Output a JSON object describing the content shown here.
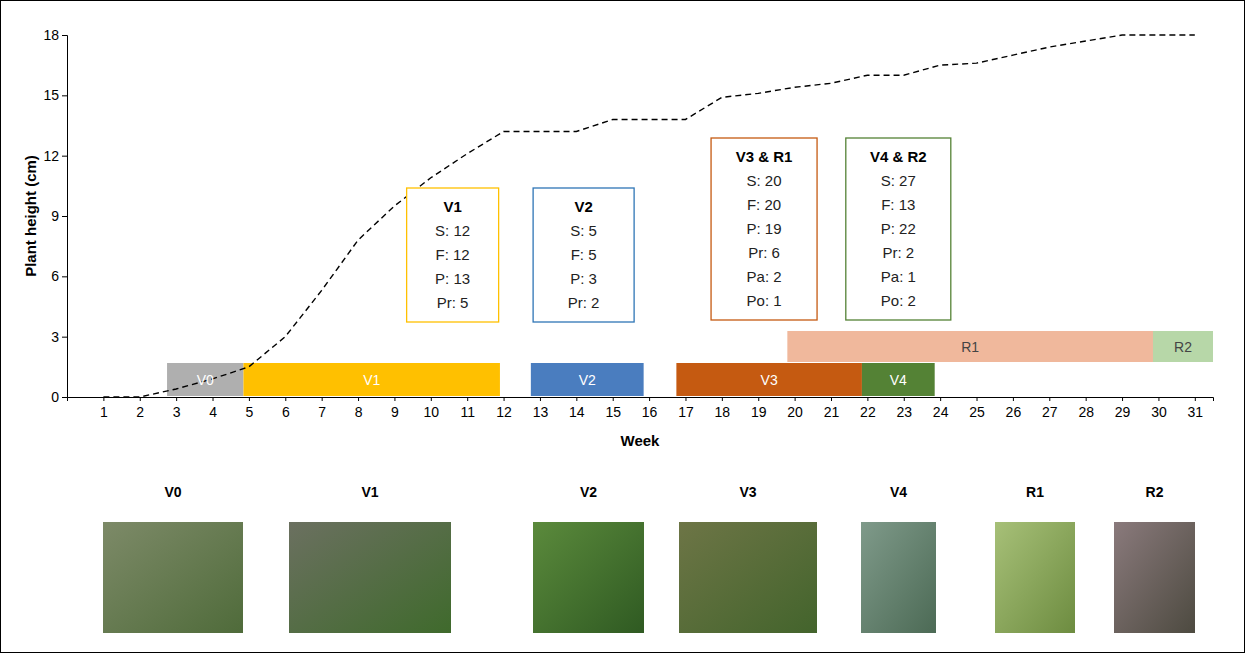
{
  "chart_data": {
    "type": "line",
    "x_label": "Week",
    "y_label": "Plant height (cm)",
    "x": [
      1,
      2,
      3,
      4,
      5,
      6,
      7,
      8,
      9,
      10,
      11,
      12,
      13,
      14,
      15,
      16,
      17,
      18,
      19,
      20,
      21,
      22,
      23,
      24,
      25,
      26,
      27,
      28,
      29,
      30,
      31
    ],
    "values": [
      0,
      0,
      0.4,
      0.9,
      1.5,
      3.0,
      5.3,
      7.8,
      9.5,
      10.9,
      12.1,
      13.2,
      13.2,
      13.2,
      13.8,
      13.8,
      13.8,
      14.9,
      15.1,
      15.4,
      15.6,
      16.0,
      16.0,
      16.5,
      16.6,
      17.0,
      17.4,
      17.7,
      18.0,
      18.0,
      18.0
    ],
    "color": "#000000",
    "line_style": "dashed",
    "xlim": [
      0,
      31.5
    ],
    "xticks": [
      1,
      2,
      3,
      4,
      5,
      6,
      7,
      8,
      9,
      10,
      11,
      12,
      13,
      14,
      15,
      16,
      17,
      18,
      19,
      20,
      21,
      22,
      23,
      24,
      25,
      26,
      27,
      28,
      29,
      30,
      31
    ],
    "ylim": [
      0,
      18
    ],
    "yticks": [
      0,
      3,
      6,
      9,
      12,
      15,
      18
    ],
    "grid": false,
    "phases": [
      {
        "label": "V0",
        "start": 2.75,
        "end": 4.85,
        "color": "#afafaf"
      },
      {
        "label": "V1",
        "start": 4.85,
        "end": 11.9,
        "color": "#ffc000"
      },
      {
        "label": "V2",
        "start": 12.75,
        "end": 15.85,
        "color": "#4a7dbf"
      },
      {
        "label": "V3",
        "start": 16.75,
        "end": 21.85,
        "color": "#c55a11"
      },
      {
        "label": "V4",
        "start": 21.85,
        "end": 23.85,
        "color": "#548235"
      },
      {
        "label": "R1",
        "start": 19.8,
        "end": 29.85,
        "color": "#f0b89c"
      },
      {
        "label": "R2",
        "start": 29.85,
        "end": 31.5,
        "color": "#b7d7a8"
      }
    ],
    "annotations": [
      {
        "title": "V1",
        "lines": [
          "S: 12",
          "F: 12",
          "P: 13",
          "Pr: 5"
        ],
        "color": "#ffc000"
      },
      {
        "title": "V2",
        "lines": [
          "S: 5",
          "F: 5",
          "P: 3",
          "Pr: 2"
        ],
        "color": "#2e75b6"
      },
      {
        "title": "V3 & R1",
        "lines": [
          "S: 20",
          "F: 20",
          "P: 19",
          "Pr: 6",
          "Pa: 2",
          "Po: 1"
        ],
        "color": "#c55a11"
      },
      {
        "title": "V4 & R2",
        "lines": [
          "S: 27",
          "F: 13",
          "P: 22",
          "Pr: 2",
          "Pa: 1",
          "Po: 2"
        ],
        "color": "#548235"
      }
    ],
    "photos": [
      "V0",
      "V1",
      "V2",
      "V3",
      "V4",
      "R1",
      "R2"
    ]
  }
}
